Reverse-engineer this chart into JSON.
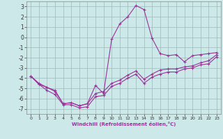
{
  "x": [
    0,
    1,
    2,
    3,
    4,
    5,
    6,
    7,
    8,
    9,
    10,
    11,
    12,
    13,
    14,
    15,
    16,
    17,
    18,
    19,
    20,
    21,
    22,
    23
  ],
  "line1_y": [
    -3.8,
    -4.5,
    -4.9,
    -5.2,
    -6.5,
    -6.4,
    -6.7,
    -6.5,
    -5.5,
    -5.3,
    -4.5,
    -4.2,
    -3.7,
    -3.3,
    -4.1,
    -3.6,
    -3.2,
    -3.1,
    -3.1,
    -2.9,
    -2.8,
    -2.5,
    -2.3,
    -1.7
  ],
  "line2_y": [
    -3.8,
    -4.6,
    -5.2,
    -5.6,
    -6.6,
    -6.6,
    -6.9,
    -6.8,
    -5.8,
    -5.7,
    -4.8,
    -4.5,
    -4.0,
    -3.6,
    -4.5,
    -3.9,
    -3.6,
    -3.4,
    -3.4,
    -3.1,
    -3.0,
    -2.7,
    -2.6,
    -1.9
  ],
  "line3_y": [
    -3.8,
    -4.6,
    -4.9,
    -5.3,
    -6.5,
    -6.4,
    -6.7,
    -6.5,
    -4.7,
    -5.5,
    -0.2,
    1.3,
    2.0,
    3.1,
    2.7,
    -0.1,
    -1.6,
    -1.8,
    -1.7,
    -2.4,
    -1.8,
    -1.7,
    -1.6,
    -1.5
  ],
  "xlabel": "Windchill (Refroidissement éolien,°C)",
  "ylim": [
    -7.5,
    3.5
  ],
  "xlim": [
    -0.5,
    23.5
  ],
  "yticks": [
    3,
    2,
    1,
    0,
    -1,
    -2,
    -3,
    -4,
    -5,
    -6,
    -7
  ],
  "xticks": [
    0,
    1,
    2,
    3,
    4,
    5,
    6,
    7,
    8,
    9,
    10,
    11,
    12,
    13,
    14,
    15,
    16,
    17,
    18,
    19,
    20,
    21,
    22,
    23
  ],
  "line_color": "#993399",
  "bg_color": "#cce8e8",
  "grid_color": "#99bbbb",
  "marker": "+",
  "marker_size": 3,
  "line_width": 0.8
}
